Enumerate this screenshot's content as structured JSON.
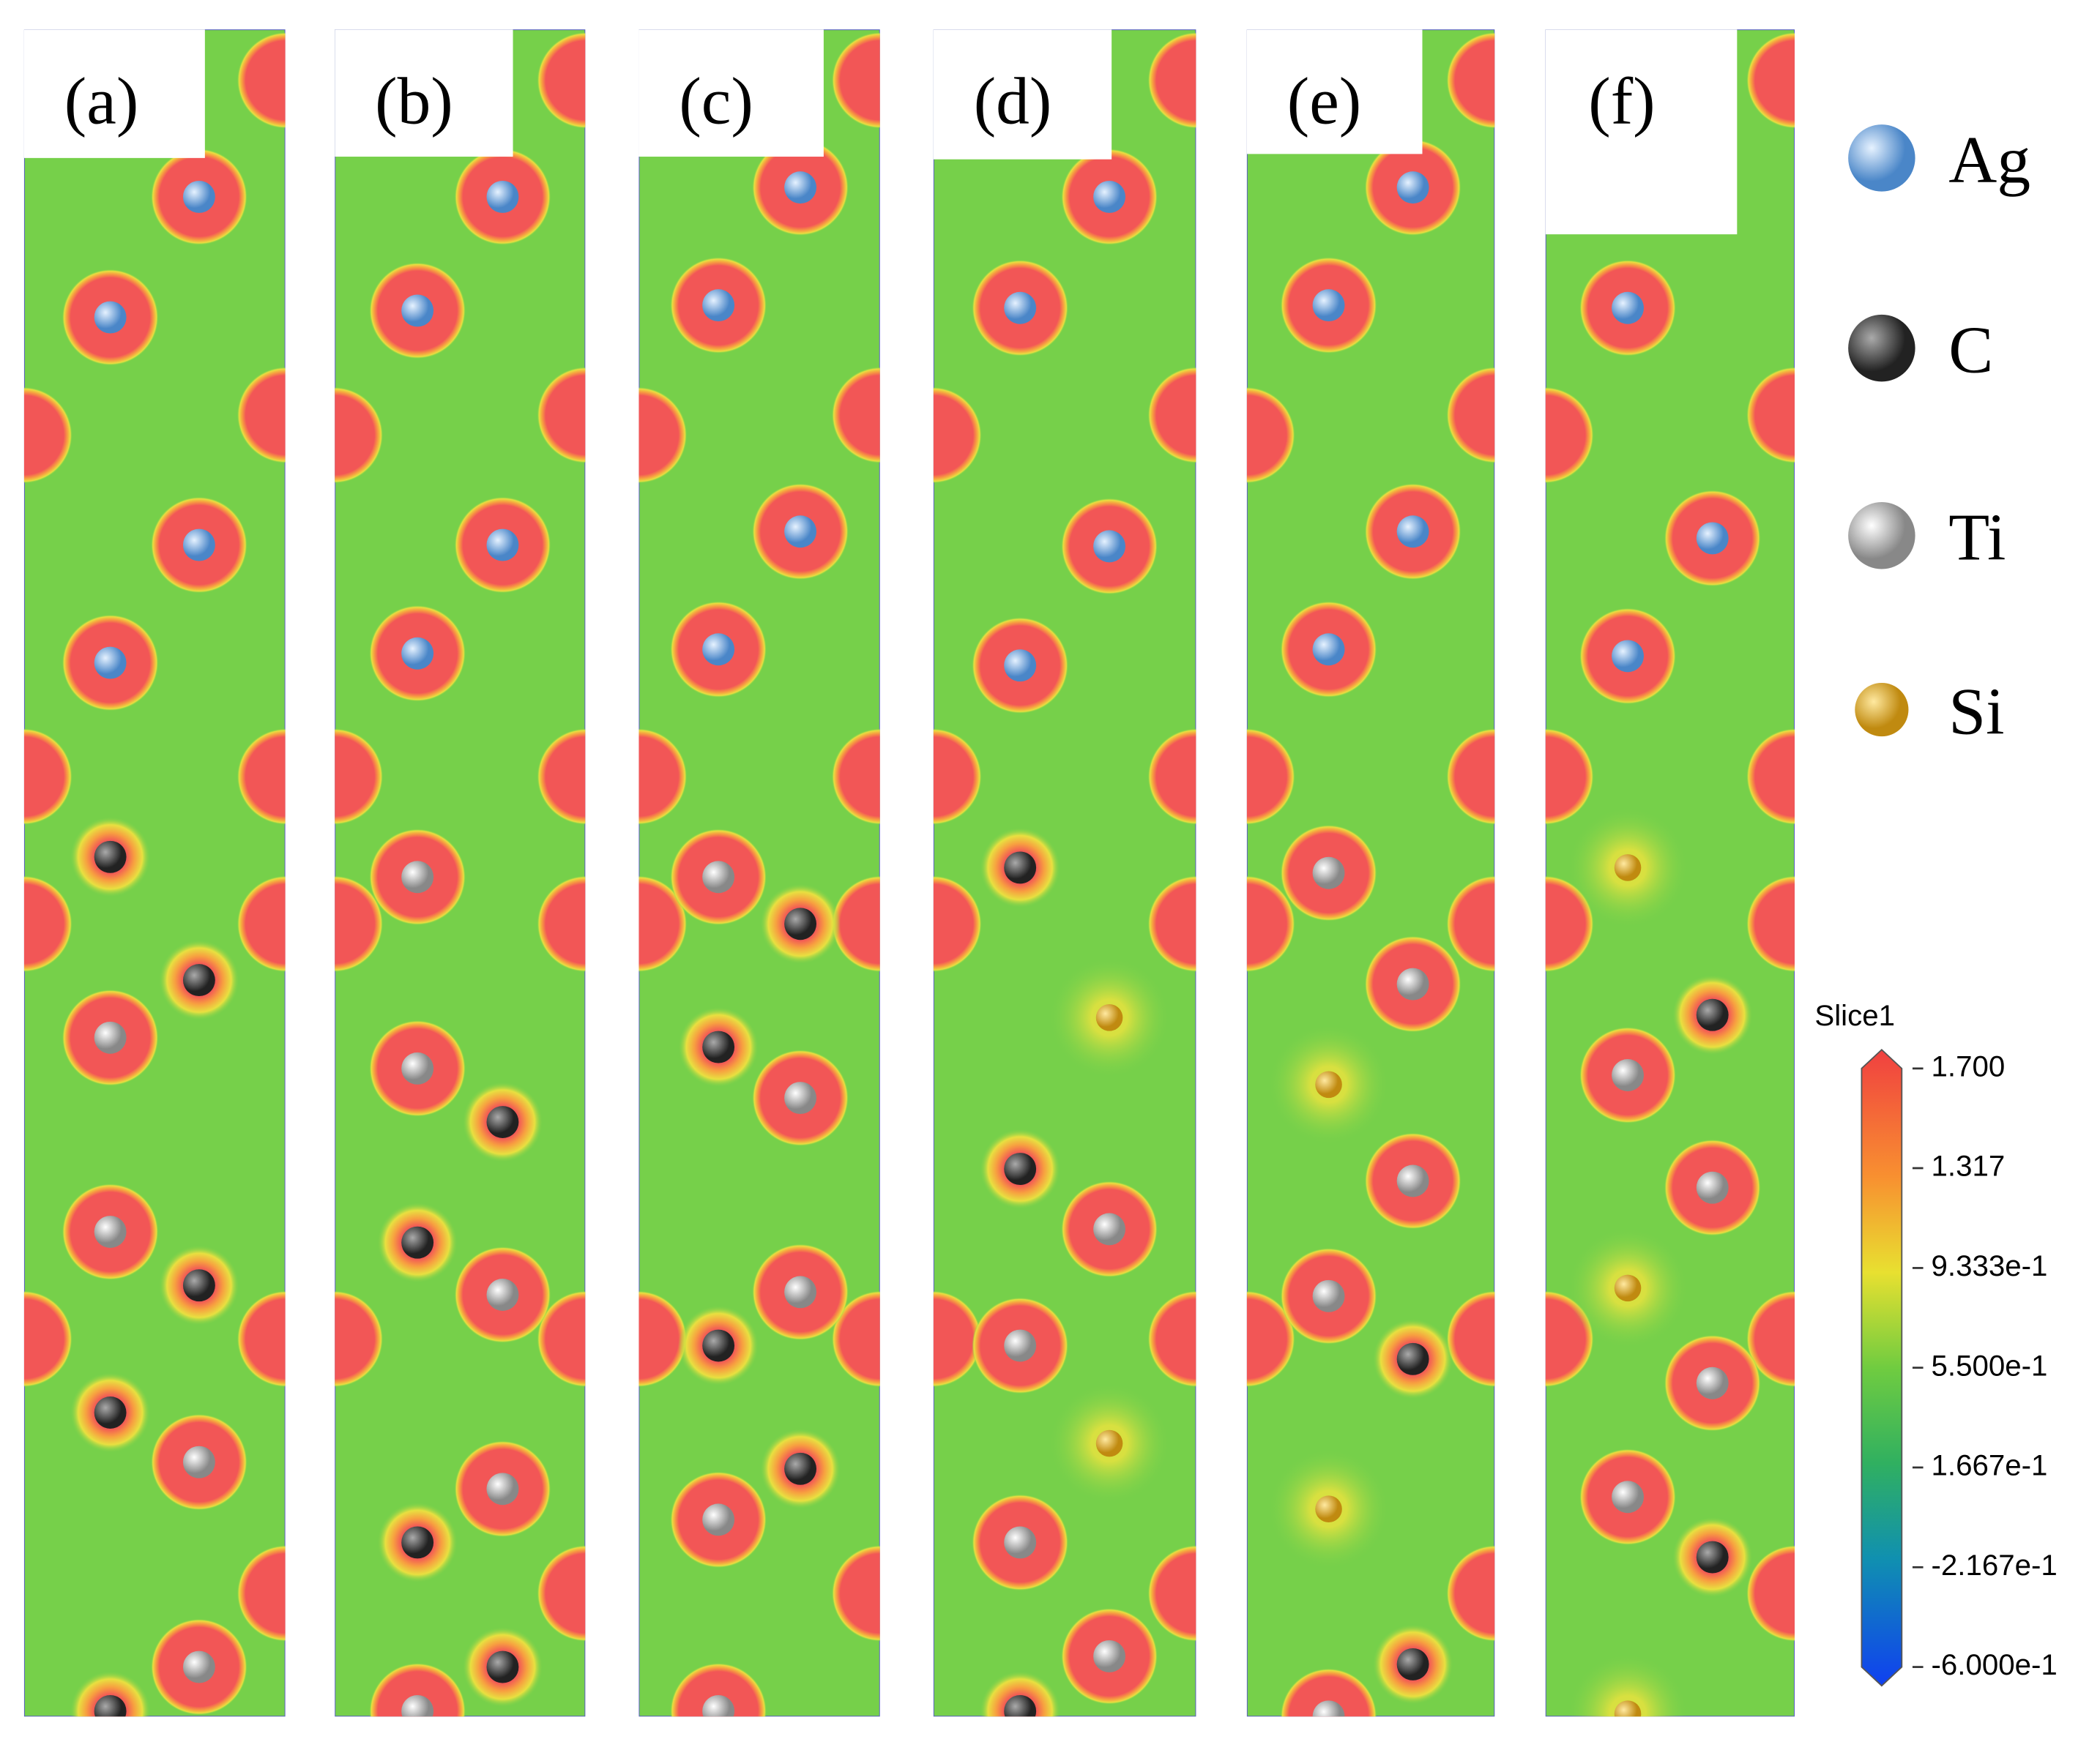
{
  "panels": [
    "(a)",
    "(b)",
    "(c)",
    "(d)",
    "(e)",
    "(f)"
  ],
  "legend": [
    "Ag",
    "C",
    "Ti",
    "Si"
  ],
  "colorbar": {
    "title": "Slice1",
    "range": [
      -0.6,
      1.7
    ],
    "ticks": [
      {
        "value": 1.7,
        "label": "1.700"
      },
      {
        "value": 1.317,
        "label": "1.317"
      },
      {
        "value": 0.9333,
        "label": "9.333e-1"
      },
      {
        "value": 0.55,
        "label": "5.500e-1"
      },
      {
        "value": 0.1667,
        "label": "1.667e-1"
      },
      {
        "value": -0.2167,
        "label": "-2.167e-1"
      },
      {
        "value": -0.6,
        "label": "-6.000e-1"
      }
    ]
  }
}
